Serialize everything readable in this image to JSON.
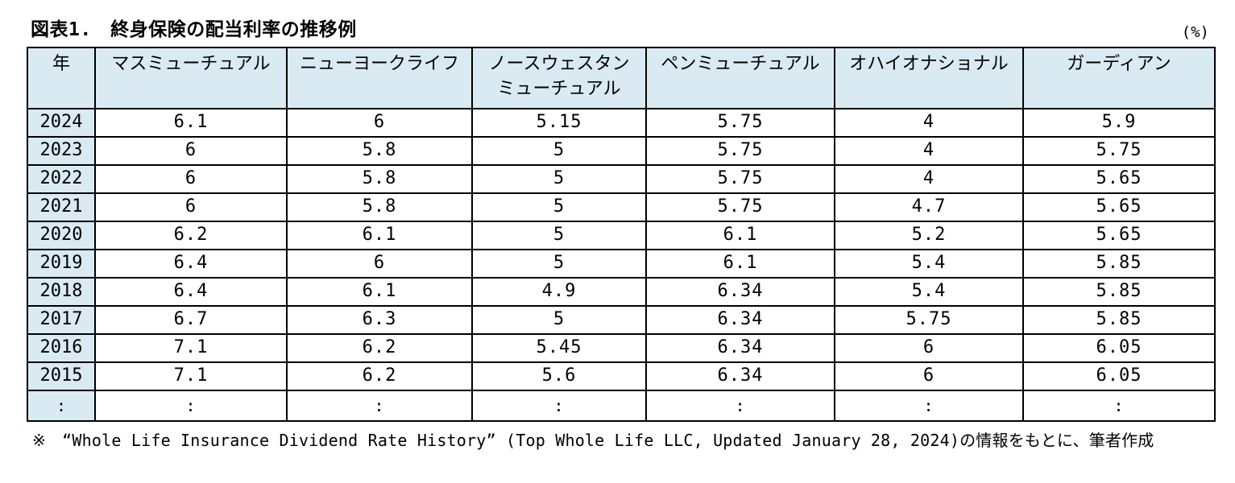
{
  "figure": {
    "title": "図表1.　終身保険の配当利率の推移例",
    "unit_label": "(%)"
  },
  "table": {
    "columns": [
      {
        "key": "year",
        "label": "年"
      },
      {
        "key": "massmutual",
        "label": "マスミューチュアル"
      },
      {
        "key": "newyorklife",
        "label": "ニューヨークライフ"
      },
      {
        "key": "northwestern-mutual",
        "label": "ノースウェスタン\nミューチュアル"
      },
      {
        "key": "pennmutual",
        "label": "ペンミューチュアル"
      },
      {
        "key": "ohionational",
        "label": "オハイオナショナル"
      },
      {
        "key": "guardian",
        "label": "ガーディアン"
      }
    ],
    "rows": [
      {
        "year": "2024",
        "values": [
          "6.1",
          "6",
          "5.15",
          "5.75",
          "4",
          "5.9"
        ]
      },
      {
        "year": "2023",
        "values": [
          "6",
          "5.8",
          "5",
          "5.75",
          "4",
          "5.75"
        ]
      },
      {
        "year": "2022",
        "values": [
          "6",
          "5.8",
          "5",
          "5.75",
          "4",
          "5.65"
        ]
      },
      {
        "year": "2021",
        "values": [
          "6",
          "5.8",
          "5",
          "5.75",
          "4.7",
          "5.65"
        ]
      },
      {
        "year": "2020",
        "values": [
          "6.2",
          "6.1",
          "5",
          "6.1",
          "5.2",
          "5.65"
        ]
      },
      {
        "year": "2019",
        "values": [
          "6.4",
          "6",
          "5",
          "6.1",
          "5.4",
          "5.85"
        ]
      },
      {
        "year": "2018",
        "values": [
          "6.4",
          "6.1",
          "4.9",
          "6.34",
          "5.4",
          "5.85"
        ]
      },
      {
        "year": "2017",
        "values": [
          "6.7",
          "6.3",
          "5",
          "6.34",
          "5.75",
          "5.85"
        ]
      },
      {
        "year": "2016",
        "values": [
          "7.1",
          "6.2",
          "5.45",
          "6.34",
          "6",
          "6.05"
        ]
      },
      {
        "year": "2015",
        "values": [
          "7.1",
          "6.2",
          "5.6",
          "6.34",
          "6",
          "6.05"
        ]
      },
      {
        "year": ":",
        "values": [
          ":",
          ":",
          ":",
          ":",
          ":",
          ":"
        ],
        "ellipsis": true
      }
    ]
  },
  "footnote": "※　“Whole Life Insurance Dividend Rate History” (Top Whole Life LLC, Updated January 28, 2024)の情報をもとに、筆者作成",
  "colors": {
    "header_bg": "#daeaf2",
    "border": "#000000",
    "text": "#000000"
  }
}
